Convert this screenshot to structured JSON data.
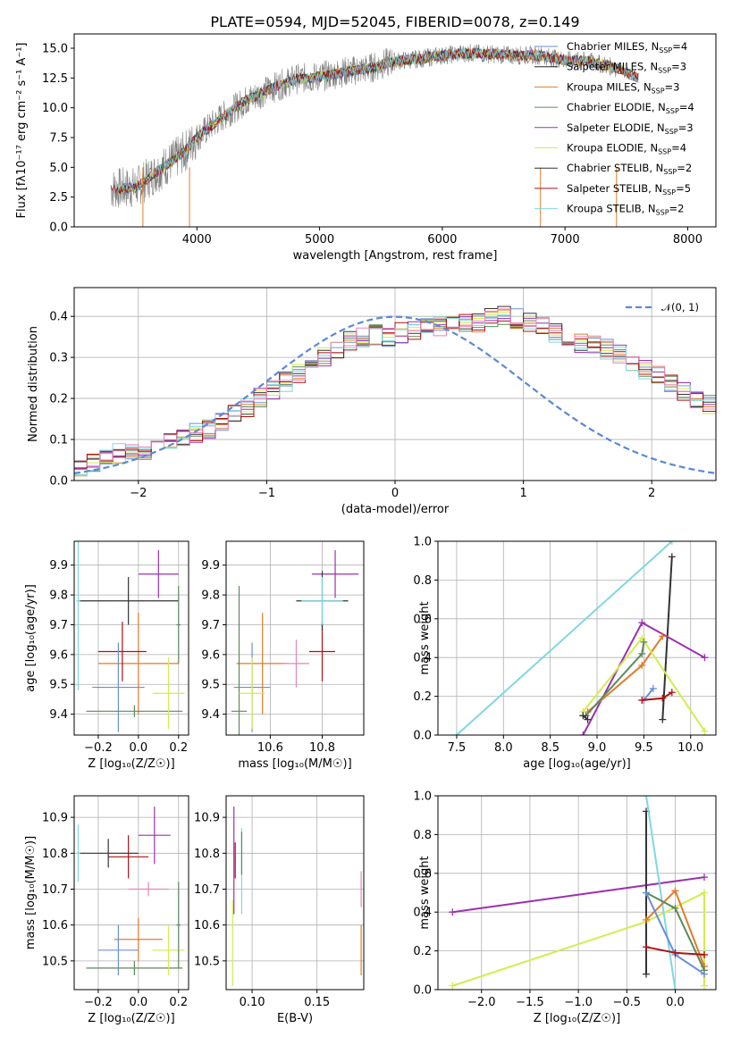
{
  "figure_title": "PLATE=0594, MJD=52045, FIBERID=0078, z=0.149",
  "colors": {
    "chabrier_miles": "#6b8fd6",
    "salpeter_miles": "#222222",
    "kroupa_miles": "#e07b2a",
    "chabrier_elodie": "#5c8a5c",
    "salpeter_elodie": "#9b30b0",
    "kroupa_elodie": "#d4ec4e",
    "chabrier_stelib": "#333333",
    "salpeter_stelib": "#b01010",
    "kroupa_stelib": "#7fd8e0",
    "pink": "#e883b8",
    "data": "#808080",
    "gaussian": "#5b88d6"
  },
  "chart_data": [
    {
      "id": "spectrum",
      "type": "line",
      "title": "PLATE=0594, MJD=52045, FIBERID=0078, z=0.149",
      "xlabel": "wavelength [Angstrom, rest frame]",
      "ylabel": "Flux [fλ10⁻¹⁷ erg cm⁻² s⁻¹ A⁻¹]",
      "xlim": [
        3000,
        8230
      ],
      "ylim": [
        0,
        16.2
      ],
      "xticks": [
        4000,
        5000,
        6000,
        7000,
        8000
      ],
      "yticks": [
        "0.0",
        "2.5",
        "5.0",
        "7.5",
        "10.0",
        "12.5",
        "15.0"
      ],
      "grid": false,
      "legend_position": "top-right",
      "legend": [
        {
          "name": "Chabrier MILES, N",
          "sub": "SSP",
          "suffix": "=4",
          "color": "#6b8fd6"
        },
        {
          "name": "Salpeter MILES, N",
          "sub": "SSP",
          "suffix": "=3",
          "color": "#222222"
        },
        {
          "name": "Kroupa MILES, N",
          "sub": "SSP",
          "suffix": "=3",
          "color": "#e07b2a"
        },
        {
          "name": "Chabrier ELODIE, N",
          "sub": "SSP",
          "suffix": "=4",
          "color": "#5c8a5c"
        },
        {
          "name": "Salpeter ELODIE, N",
          "sub": "SSP",
          "suffix": "=3",
          "color": "#9b30b0"
        },
        {
          "name": "Kroupa ELODIE, N",
          "sub": "SSP",
          "suffix": "=4",
          "color": "#d4ec4e"
        },
        {
          "name": "Chabrier STELIB, N",
          "sub": "SSP",
          "suffix": "=2",
          "color": "#333333"
        },
        {
          "name": "Salpeter STELIB, N",
          "sub": "SSP",
          "suffix": "=5",
          "color": "#b01010"
        },
        {
          "name": "Kroupa STELIB, N",
          "sub": "SSP",
          "suffix": "=2",
          "color": "#7fd8e0"
        }
      ],
      "continuum": {
        "x": [
          3300,
          3500,
          3700,
          3900,
          4000,
          4200,
          4400,
          4600,
          4800,
          5000,
          5200,
          5400,
          5600,
          5800,
          6000,
          6200,
          6400,
          6600,
          6800,
          7000,
          7200,
          7400,
          7600
        ],
        "y": [
          3.2,
          3.3,
          4.8,
          6.3,
          7.5,
          9.2,
          10.6,
          11.6,
          12.4,
          12.6,
          13.0,
          13.3,
          13.9,
          14.1,
          14.4,
          14.6,
          14.5,
          14.4,
          14.4,
          14.0,
          13.9,
          13.4,
          12.5
        ]
      }
    },
    {
      "id": "residual-histogram",
      "type": "bar",
      "xlabel": "(data-model)/error",
      "ylabel": "Normed distribution",
      "xlim": [
        -2.5,
        2.5
      ],
      "ylim": [
        0,
        0.47
      ],
      "xticks": [
        "−2",
        "−1",
        "0",
        "1",
        "2"
      ],
      "yticks": [
        "0.0",
        "0.1",
        "0.2",
        "0.3",
        "0.4"
      ],
      "grid": true,
      "legend_position": "top-right",
      "gaussian_label": "𝒩(0, 1)",
      "bin_width": 0.1,
      "bin_start": -2.5,
      "envelope": [
        0.03,
        0.045,
        0.055,
        0.065,
        0.07,
        0.075,
        0.082,
        0.095,
        0.105,
        0.115,
        0.125,
        0.14,
        0.16,
        0.18,
        0.2,
        0.22,
        0.24,
        0.26,
        0.28,
        0.3,
        0.32,
        0.34,
        0.35,
        0.355,
        0.35,
        0.36,
        0.365,
        0.37,
        0.375,
        0.375,
        0.385,
        0.385,
        0.395,
        0.4,
        0.395,
        0.385,
        0.375,
        0.36,
        0.345,
        0.335,
        0.33,
        0.32,
        0.31,
        0.29,
        0.27,
        0.255,
        0.24,
        0.22,
        0.2,
        0.185,
        0.17,
        0.155,
        0.14,
        0.12,
        0.105,
        0.09,
        0.075,
        0.065,
        0.055,
        0.045,
        0.04,
        0.035,
        0.03,
        0.025,
        0.02,
        0.02,
        0.02,
        0.02,
        0.02,
        0.02
      ]
    },
    {
      "id": "age-vs-Z",
      "type": "scatter",
      "xlabel": "Z [log₁₀(Z/Z☉)]",
      "ylabel": "age  [log₁₀(age/yr)]",
      "xlim": [
        -0.32,
        0.25
      ],
      "ylim": [
        9.33,
        9.98
      ],
      "xticks": [
        "−0.2",
        "0.0",
        "0.2"
      ],
      "yticks": [
        "9.4",
        "9.5",
        "9.6",
        "9.7",
        "9.8",
        "9.9"
      ],
      "grid": true,
      "points": [
        {
          "x": 0.0,
          "y": 9.57,
          "xerr": 0.2,
          "yerr": 0.17,
          "color": "#e07b2a"
        },
        {
          "x": -0.08,
          "y": 9.61,
          "xerr": 0.12,
          "yerr": 0.1,
          "color": "#b01010"
        },
        {
          "x": -0.1,
          "y": 9.49,
          "xerr": 0.13,
          "yerr": 0.15,
          "color": "#6b8fd6"
        },
        {
          "x": 0.1,
          "y": 9.87,
          "xerr": 0.1,
          "yerr": 0.08,
          "color": "#9b30b0"
        },
        {
          "x": -0.02,
          "y": 9.41,
          "xerr": 0.24,
          "yerr": 0.02,
          "color": "#5c8a5c"
        },
        {
          "x": 0.15,
          "y": 9.47,
          "xerr": 0.08,
          "yerr": 0.12,
          "color": "#d4ec4e"
        },
        {
          "x": -0.05,
          "y": 9.78,
          "xerr": 0.25,
          "yerr": 0.08,
          "color": "#333333"
        },
        {
          "x": -0.3,
          "y": 9.78,
          "xerr": 0.01,
          "yerr": 0.3,
          "color": "#7fd8e0"
        },
        {
          "x": 0.2,
          "y": 9.7,
          "xerr": 0.01,
          "yerr": 0.13,
          "color": "#5c8a5c"
        }
      ]
    },
    {
      "id": "age-vs-mass",
      "type": "scatter",
      "xlabel": "mass [log₁₀(M/M☉)]",
      "ylabel": "",
      "xlim": [
        10.43,
        10.96
      ],
      "ylim": [
        9.33,
        9.98
      ],
      "xticks": [
        "10.6",
        "10.8"
      ],
      "yticks": [
        "9.4",
        "9.5",
        "9.6",
        "9.7",
        "9.8",
        "9.9"
      ],
      "grid": true,
      "points": [
        {
          "x": 10.57,
          "y": 9.57,
          "xerr": 0.1,
          "yerr": 0.17,
          "color": "#e07b2a"
        },
        {
          "x": 10.8,
          "y": 9.61,
          "xerr": 0.05,
          "yerr": 0.1,
          "color": "#b01010"
        },
        {
          "x": 10.53,
          "y": 9.49,
          "xerr": 0.07,
          "yerr": 0.15,
          "color": "#6b8fd6"
        },
        {
          "x": 10.85,
          "y": 9.87,
          "xerr": 0.09,
          "yerr": 0.08,
          "color": "#9b30b0"
        },
        {
          "x": 10.48,
          "y": 9.41,
          "xerr": 0.03,
          "yerr": 0.42,
          "color": "#5c8a5c"
        },
        {
          "x": 10.53,
          "y": 9.47,
          "xerr": 0.05,
          "yerr": 0.12,
          "color": "#d4ec4e"
        },
        {
          "x": 10.8,
          "y": 9.78,
          "xerr": 0.1,
          "yerr": 0.1,
          "color": "#333333"
        },
        {
          "x": 10.8,
          "y": 9.78,
          "xerr": 0.08,
          "yerr": 0.08,
          "color": "#7fd8e0"
        },
        {
          "x": 10.7,
          "y": 9.57,
          "xerr": 0.05,
          "yerr": 0.08,
          "color": "#e883b8"
        }
      ]
    },
    {
      "id": "weight-vs-age",
      "type": "line",
      "xlabel": "age  [log₁₀(age/yr)]",
      "ylabel": "mass weight",
      "xlim": [
        7.3,
        10.27
      ],
      "ylim": [
        0,
        1.0
      ],
      "xticks": [
        "7.5",
        "8.0",
        "8.5",
        "9.0",
        "9.5",
        "10.0"
      ],
      "yticks": [
        "0.0",
        "0.2",
        "0.4",
        "0.6",
        "0.8",
        "1.0"
      ],
      "grid": true,
      "series": [
        {
          "color": "#7fd8e0",
          "x": [
            7.5,
            9.8
          ],
          "y": [
            0.0,
            1.0
          ]
        },
        {
          "color": "#333333",
          "x": [
            9.7,
            9.8
          ],
          "y": [
            0.08,
            0.92
          ]
        },
        {
          "color": "#9b30b0",
          "x": [
            8.85,
            9.48,
            10.15
          ],
          "y": [
            0.0,
            0.58,
            0.4
          ]
        },
        {
          "color": "#e07b2a",
          "x": [
            8.9,
            9.48,
            9.7
          ],
          "y": [
            0.12,
            0.36,
            0.51
          ]
        },
        {
          "color": "#d4ec4e",
          "x": [
            8.85,
            9.48,
            10.15
          ],
          "y": [
            0.12,
            0.5,
            0.02
          ]
        },
        {
          "color": "#5c8a5c",
          "x": [
            8.88,
            9.48,
            9.5
          ],
          "y": [
            0.1,
            0.42,
            0.48
          ]
        },
        {
          "color": "#6b8fd6",
          "x": [
            9.5,
            9.6
          ],
          "y": [
            0.18,
            0.24
          ]
        },
        {
          "color": "#b01010",
          "x": [
            9.48,
            9.7,
            9.8
          ],
          "y": [
            0.18,
            0.19,
            0.22
          ]
        },
        {
          "color": "#333333",
          "x": [
            8.85,
            8.9
          ],
          "y": [
            0.1,
            0.08
          ]
        }
      ]
    },
    {
      "id": "mass-vs-Z",
      "type": "scatter",
      "xlabel": "Z [log₁₀(Z/Z☉)]",
      "ylabel": "mass [log₁₀(M/M☉)]",
      "xlim": [
        -0.32,
        0.25
      ],
      "ylim": [
        10.42,
        10.96
      ],
      "xticks": [
        "−0.2",
        "0.0",
        "0.2"
      ],
      "yticks": [
        "10.5",
        "10.6",
        "10.7",
        "10.8",
        "10.9"
      ],
      "grid": true,
      "points": [
        {
          "x": 0.0,
          "y": 10.56,
          "xerr": 0.12,
          "yerr": 0.06,
          "color": "#e07b2a"
        },
        {
          "x": -0.05,
          "y": 10.79,
          "xerr": 0.1,
          "yerr": 0.06,
          "color": "#b01010"
        },
        {
          "x": -0.1,
          "y": 10.53,
          "xerr": 0.1,
          "yerr": 0.07,
          "color": "#6b8fd6"
        },
        {
          "x": 0.08,
          "y": 10.85,
          "xerr": 0.08,
          "yerr": 0.08,
          "color": "#9b30b0"
        },
        {
          "x": -0.02,
          "y": 10.48,
          "xerr": 0.24,
          "yerr": 0.02,
          "color": "#5c8a5c"
        },
        {
          "x": 0.15,
          "y": 10.53,
          "xerr": 0.08,
          "yerr": 0.07,
          "color": "#d4ec4e"
        },
        {
          "x": -0.15,
          "y": 10.8,
          "xerr": 0.15,
          "yerr": 0.04,
          "color": "#333333"
        },
        {
          "x": -0.3,
          "y": 10.8,
          "xerr": 0.01,
          "yerr": 0.08,
          "color": "#7fd8e0"
        },
        {
          "x": 0.05,
          "y": 10.7,
          "xerr": 0.1,
          "yerr": 0.02,
          "color": "#e883b8"
        },
        {
          "x": 0.2,
          "y": 10.6,
          "xerr": 0.01,
          "yerr": 0.12,
          "color": "#5c8a5c"
        }
      ]
    },
    {
      "id": "mass-vs-ebv",
      "type": "scatter",
      "xlabel": "E(B-V)",
      "ylabel": "",
      "xlim": [
        0.08,
        0.186
      ],
      "ylim": [
        10.42,
        10.96
      ],
      "xticks": [
        "0.10",
        "0.15"
      ],
      "yticks": [
        "10.5",
        "10.6",
        "10.7",
        "10.8",
        "10.9"
      ],
      "grid": true,
      "points": [
        {
          "x": 0.085,
          "y": 10.55,
          "xerr": 0.0,
          "yerr": 0.12,
          "color": "#d4ec4e"
        },
        {
          "x": 0.086,
          "y": 10.78,
          "xerr": 0.0,
          "yerr": 0.15,
          "color": "#9b30b0"
        },
        {
          "x": 0.087,
          "y": 10.78,
          "xerr": 0.0,
          "yerr": 0.05,
          "color": "#b01010"
        },
        {
          "x": 0.092,
          "y": 10.75,
          "xerr": 0.0,
          "yerr": 0.12,
          "color": "#7fd8e0"
        },
        {
          "x": 0.092,
          "y": 10.8,
          "xerr": 0.0,
          "yerr": 0.06,
          "color": "#5c8a5c"
        },
        {
          "x": 0.184,
          "y": 10.53,
          "xerr": 0.0,
          "yerr": 0.07,
          "color": "#e07b2a"
        },
        {
          "x": 0.184,
          "y": 10.7,
          "xerr": 0.0,
          "yerr": 0.05,
          "color": "#e883b8"
        }
      ]
    },
    {
      "id": "weight-vs-Z",
      "type": "line",
      "xlabel": "Z [log₁₀(Z/Z☉)]",
      "ylabel": "mass weight",
      "xlim": [
        -2.45,
        0.42
      ],
      "ylim": [
        0,
        1.0
      ],
      "xticks": [
        "−2.0",
        "−1.5",
        "−1.0",
        "−0.5",
        "0.0"
      ],
      "yticks": [
        "0.0",
        "0.2",
        "0.4",
        "0.6",
        "0.8",
        "1.0"
      ],
      "grid": true,
      "series": [
        {
          "color": "#9b30b0",
          "x": [
            -2.3,
            0.3
          ],
          "y": [
            0.4,
            0.58
          ]
        },
        {
          "color": "#d4ec4e",
          "x": [
            -2.3,
            -0.3,
            0.3,
            0.3
          ],
          "y": [
            0.02,
            0.35,
            0.5,
            0.02
          ]
        },
        {
          "color": "#333333",
          "x": [
            -0.3,
            -0.3
          ],
          "y": [
            0.08,
            0.92
          ]
        },
        {
          "color": "#7fd8e0",
          "x": [
            -0.3,
            0.0
          ],
          "y": [
            1.0,
            0.0
          ]
        },
        {
          "color": "#e07b2a",
          "x": [
            -0.3,
            0.0,
            0.3
          ],
          "y": [
            0.36,
            0.51,
            0.12
          ]
        },
        {
          "color": "#5c8a5c",
          "x": [
            -0.3,
            0.0,
            0.3
          ],
          "y": [
            0.5,
            0.42,
            0.1
          ]
        },
        {
          "color": "#6b8fd6",
          "x": [
            -0.3,
            0.0,
            0.3
          ],
          "y": [
            0.5,
            0.18,
            0.08
          ]
        },
        {
          "color": "#b01010",
          "x": [
            -0.3,
            0.0,
            0.3
          ],
          "y": [
            0.22,
            0.19,
            0.18
          ]
        }
      ]
    }
  ]
}
